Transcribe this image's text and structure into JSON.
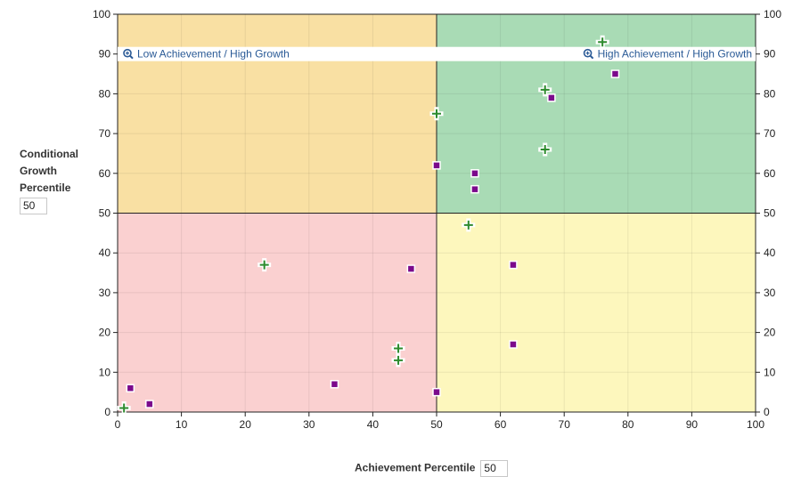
{
  "chart_data": {
    "type": "scatter",
    "xlabel": "Achievement Percentile",
    "ylabel": "Conditional Growth Percentile",
    "xlim": [
      0,
      100
    ],
    "ylim": [
      0,
      100
    ],
    "x_ticks": [
      0,
      10,
      20,
      30,
      40,
      50,
      60,
      70,
      80,
      90,
      100
    ],
    "y_ticks": [
      0,
      10,
      20,
      30,
      40,
      50,
      60,
      70,
      80,
      90,
      100
    ],
    "grid": true,
    "thresholds": {
      "x": 50,
      "y": 50
    },
    "quadrant_labels": [
      {
        "text": "Low Achievement / High Growth",
        "icon": "zoom-in-icon"
      },
      {
        "text": "High Achievement / High Growth",
        "icon": "zoom-in-icon"
      }
    ],
    "quadrant_colors": {
      "low_achievement_high_growth": "#f9e0a3",
      "high_achievement_high_growth": "#a9dbb5",
      "low_achievement_low_growth": "#fad0d0",
      "high_achievement_low_growth": "#fdf7bd"
    },
    "series": [
      {
        "marker": "plus",
        "color": "#2e8b2e",
        "points": [
          {
            "x": 1,
            "y": 1
          },
          {
            "x": 23,
            "y": 37
          },
          {
            "x": 44,
            "y": 16
          },
          {
            "x": 44,
            "y": 13
          },
          {
            "x": 50,
            "y": 75
          },
          {
            "x": 55,
            "y": 47
          },
          {
            "x": 67,
            "y": 81
          },
          {
            "x": 67,
            "y": 66
          },
          {
            "x": 76,
            "y": 93
          }
        ]
      },
      {
        "marker": "square",
        "color": "#7b0a8c",
        "points": [
          {
            "x": 2,
            "y": 6
          },
          {
            "x": 5,
            "y": 2
          },
          {
            "x": 34,
            "y": 7
          },
          {
            "x": 46,
            "y": 36
          },
          {
            "x": 50,
            "y": 5
          },
          {
            "x": 50,
            "y": 62
          },
          {
            "x": 56,
            "y": 60
          },
          {
            "x": 56,
            "y": 56
          },
          {
            "x": 62,
            "y": 37
          },
          {
            "x": 62,
            "y": 17
          },
          {
            "x": 68,
            "y": 79
          },
          {
            "x": 78,
            "y": 85
          }
        ]
      }
    ]
  },
  "controls": {
    "y_label_lines": [
      "Conditional",
      "Growth",
      "Percentile"
    ],
    "y_threshold_value": "50",
    "x_label": "Achievement Percentile",
    "x_threshold_value": "50"
  }
}
